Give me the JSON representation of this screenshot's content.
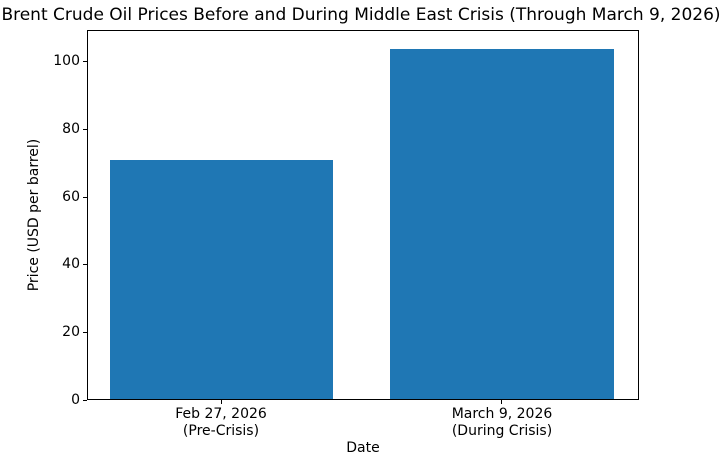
{
  "chart_data": {
    "type": "bar",
    "title": "Brent Crude Oil Prices Before and During Middle East Crisis (Through March 9, 2026)",
    "xlabel": "Date",
    "ylabel": "Price (USD per barrel)",
    "categories": [
      "Feb 27, 2026\n(Pre-Crisis)",
      "March 9, 2026\n(During Crisis)"
    ],
    "values": [
      71,
      104
    ],
    "yticks": [
      0,
      20,
      40,
      60,
      80,
      100
    ],
    "ylim": [
      0,
      109.2
    ],
    "bar_color": "#1f77b4",
    "grid": false,
    "legend_position": "none"
  }
}
